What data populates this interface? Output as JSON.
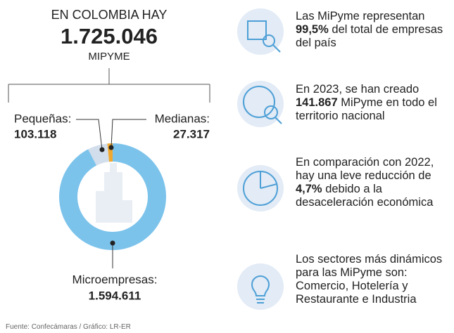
{
  "header": {
    "title": "EN COLOMBIA HAY",
    "total": "1.725.046",
    "subtitle": "MIPYME"
  },
  "chart_data": {
    "type": "pie",
    "donut": true,
    "categories": [
      "Microempresas:",
      "Pequeñas:",
      "Medianas:"
    ],
    "values": [
      1594611,
      103118,
      27317
    ],
    "value_labels": [
      "1.594.611",
      "103.118",
      "27.317"
    ],
    "colors": [
      "#7cc3ec",
      "#d3deec",
      "#f0a830"
    ]
  },
  "facts": [
    {
      "pre": "Las MiPyme representan",
      "bold": "99,5%",
      "post": "del total de empresas del país"
    },
    {
      "pre": "En 2023, se han creado",
      "bold": "141.867",
      "post": "MiPyme en todo el territorio nacional"
    },
    {
      "pre": "En comparación con 2022, hay una leve reducción de",
      "bold": "4,7%",
      "post": "debido a la desaceleración económica"
    },
    {
      "text": "Los sectores más dinámicos para las MiPyme son: Comercio, Hotelería y Restaurante e Industria"
    }
  ],
  "source": "Fuente: Confecámaras / Gráfico: LR-ER"
}
